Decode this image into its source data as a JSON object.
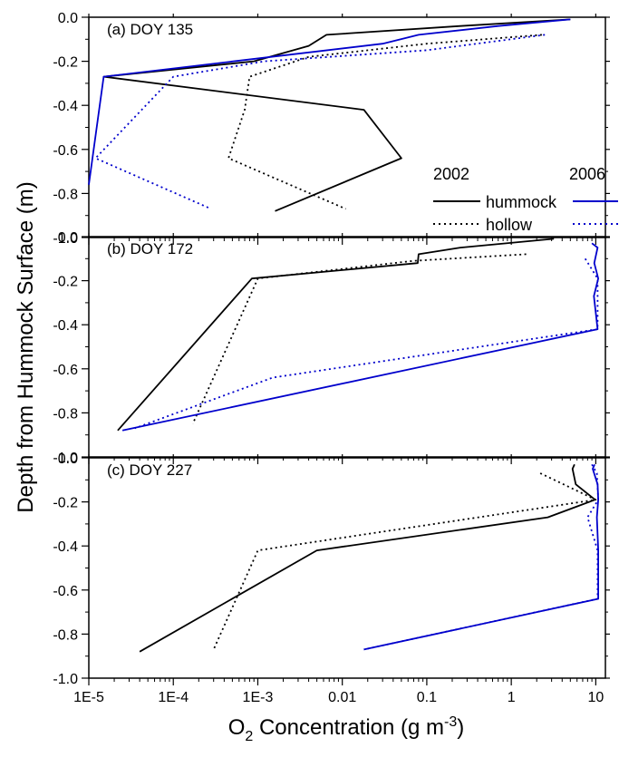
{
  "chart_data": {
    "type": "line",
    "shared_x": {
      "scale": "log",
      "lim": [
        1e-05,
        13
      ],
      "ticks": [
        1e-05,
        0.0001,
        0.001,
        0.01,
        0.1,
        1,
        10
      ],
      "tick_labels": [
        "1E-5",
        "1E-4",
        "1E-3",
        "0.01",
        "0.1",
        "1",
        "10"
      ],
      "xlabel_main": "O",
      "xlabel_sub": "2",
      "xlabel_rest": " Concentration (g m",
      "xlabel_sup": "-3",
      "xlabel_end": ")"
    },
    "shared_y": {
      "ylabel": "Depth from Hummock Surface (m)",
      "lim": [
        -1.0,
        0.0
      ],
      "ticks": [
        0.0,
        -0.2,
        -0.4,
        -0.6,
        -0.8,
        -1.0
      ],
      "tick_labels": [
        "0.0",
        "-0.2",
        "-0.4",
        "-0.6",
        "-0.8",
        "-1.0"
      ]
    },
    "legend": {
      "placement": "inside panel (a), lower-right",
      "year_labels": [
        "2002",
        "2006"
      ],
      "row_labels": [
        "hummock",
        "hollow"
      ],
      "colors": {
        "2002": "#000000",
        "2006": "#0000cc"
      },
      "styles": {
        "hummock": "solid",
        "hollow": "dotted"
      }
    },
    "panels": [
      {
        "label": "(a) DOY 135",
        "series": [
          {
            "year": "2002",
            "type": "hummock",
            "points": [
              [
                5.0,
                -0.01
              ],
              [
                0.25,
                -0.04
              ],
              [
                0.0065,
                -0.08
              ],
              [
                0.004,
                -0.13
              ],
              [
                0.0009,
                -0.2
              ],
              [
                1.5e-05,
                -0.27
              ],
              [
                0.018,
                -0.42
              ],
              [
                0.05,
                -0.64
              ],
              [
                0.0016,
                -0.88
              ]
            ]
          },
          {
            "year": "2002",
            "type": "hollow",
            "points": [
              [
                2.3,
                -0.08
              ],
              [
                0.1,
                -0.12
              ],
              [
                0.004,
                -0.18
              ],
              [
                0.0008,
                -0.27
              ],
              [
                0.0007,
                -0.42
              ],
              [
                0.00045,
                -0.64
              ],
              [
                0.011,
                -0.87
              ]
            ]
          },
          {
            "year": "2006",
            "type": "hummock",
            "points": [
              [
                5.0,
                -0.01
              ],
              [
                0.7,
                -0.04
              ],
              [
                0.08,
                -0.08
              ],
              [
                0.03,
                -0.12
              ],
              [
                1.5e-05,
                -0.27
              ],
              [
                1e-05,
                -0.76
              ]
            ]
          },
          {
            "year": "2006",
            "type": "hollow",
            "points": [
              [
                2.5,
                -0.08
              ],
              [
                0.1,
                -0.15
              ],
              [
                0.0012,
                -0.2
              ],
              [
                0.0001,
                -0.27
              ],
              [
                1.2e-05,
                -0.64
              ],
              [
                0.00028,
                -0.87
              ]
            ]
          }
        ]
      },
      {
        "label": "(b) DOY 172",
        "series": [
          {
            "year": "2002",
            "type": "hummock",
            "points": [
              [
                3.2,
                -0.01
              ],
              [
                0.25,
                -0.05
              ],
              [
                0.08,
                -0.08
              ],
              [
                0.078,
                -0.12
              ],
              [
                0.00085,
                -0.19
              ],
              [
                2.2e-05,
                -0.88
              ]
            ]
          },
          {
            "year": "2002",
            "type": "hollow",
            "points": [
              [
                1.5,
                -0.08
              ],
              [
                0.07,
                -0.11
              ],
              [
                0.001,
                -0.19
              ],
              [
                0.00017,
                -0.85
              ]
            ]
          },
          {
            "year": "2006",
            "type": "hummock",
            "points": [
              [
                9.0,
                -0.03
              ],
              [
                10.5,
                -0.05
              ],
              [
                9.6,
                -0.12
              ],
              [
                10.7,
                -0.19
              ],
              [
                9.5,
                -0.27
              ],
              [
                10.5,
                -0.42
              ],
              [
                2.5e-05,
                -0.88
              ]
            ]
          },
          {
            "year": "2006",
            "type": "hollow",
            "points": [
              [
                7.5,
                -0.1
              ],
              [
                10.5,
                -0.19
              ],
              [
                10.5,
                -0.42
              ],
              [
                0.0015,
                -0.64
              ],
              [
                3.5e-05,
                -0.87
              ]
            ]
          }
        ]
      },
      {
        "label": "(c) DOY 227",
        "series": [
          {
            "year": "2002",
            "type": "hummock",
            "points": [
              [
                5.6,
                -0.03
              ],
              [
                5.3,
                -0.05
              ],
              [
                5.8,
                -0.12
              ],
              [
                9.8,
                -0.19
              ],
              [
                2.7,
                -0.27
              ],
              [
                0.005,
                -0.42
              ],
              [
                4e-05,
                -0.88
              ]
            ]
          },
          {
            "year": "2002",
            "type": "hollow",
            "points": [
              [
                2.2,
                -0.07
              ],
              [
                10.0,
                -0.19
              ],
              [
                0.001,
                -0.42
              ],
              [
                0.0003,
                -0.87
              ]
            ]
          },
          {
            "year": "2006",
            "type": "hummock",
            "points": [
              [
                9.7,
                -0.03
              ],
              [
                9.2,
                -0.05
              ],
              [
                10.5,
                -0.12
              ],
              [
                10.7,
                -0.19
              ],
              [
                10.3,
                -0.27
              ],
              [
                10.7,
                -0.42
              ],
              [
                10.7,
                -0.64
              ],
              [
                0.018,
                -0.87
              ]
            ]
          },
          {
            "year": "2006",
            "type": "hollow",
            "points": [
              [
                9.0,
                -0.03
              ],
              [
                10.3,
                -0.07
              ],
              [
                10.7,
                -0.19
              ],
              [
                8.0,
                -0.27
              ],
              [
                10.5,
                -0.42
              ],
              [
                10.5,
                -0.64
              ],
              [
                0.018,
                -0.87
              ]
            ]
          }
        ]
      }
    ]
  }
}
